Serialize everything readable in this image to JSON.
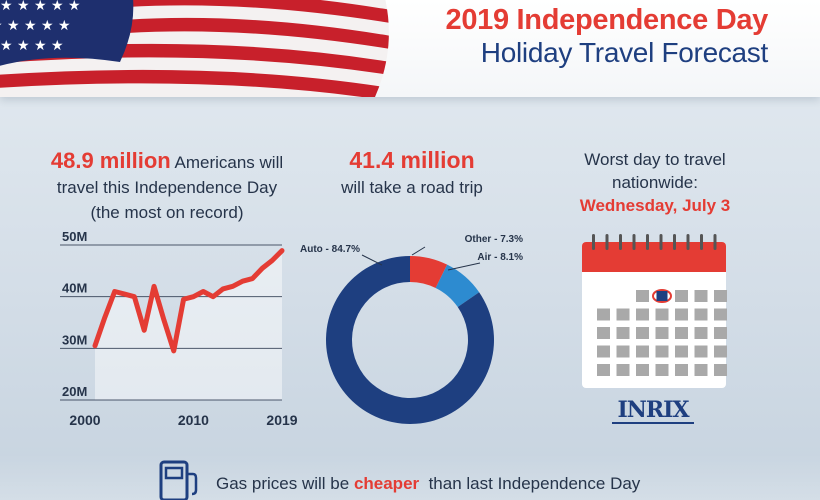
{
  "header": {
    "title_line1": "2019 Independence Day",
    "title_line2": "Holiday Travel Forecast"
  },
  "stat_travelers": {
    "highlight": "48.9 million",
    "line1_rest": " Americans will",
    "line2": "travel this Independence Day",
    "line3": "(the most on record)"
  },
  "stat_road": {
    "highlight": "41.4 million",
    "line2": "will take a road trip"
  },
  "worst_day": {
    "line1": "Worst day to travel",
    "line2": "nationwide:",
    "day": "Wednesday, July 3"
  },
  "calendar": {
    "accent": "#e43c34",
    "cell_color": "#a9a9a9",
    "marker_color": "#1e3f80"
  },
  "logo": {
    "text": "INRIX"
  },
  "gas": {
    "prefix": "Gas prices will be ",
    "emphasis": "cheaper",
    "suffix": "  than last Independence Day",
    "icon": "gas-pump-icon"
  },
  "chart_data": [
    {
      "type": "line",
      "title": "",
      "xlabel": "",
      "ylabel": "",
      "x": [
        2000,
        2001,
        2002,
        2003,
        2004,
        2005,
        2006,
        2007,
        2008,
        2009,
        2010,
        2011,
        2012,
        2013,
        2014,
        2015,
        2016,
        2017,
        2018,
        2019
      ],
      "series": [
        {
          "values": [
            30.5,
            36,
            41,
            40.5,
            40,
            33.5,
            42,
            35.5,
            29.5,
            39.5,
            40,
            41,
            40,
            41.5,
            42,
            43,
            43.5,
            45.5,
            47,
            48.9
          ]
        }
      ],
      "ylim": [
        20,
        50
      ],
      "yticks": [
        "20M",
        "30M",
        "40M",
        "50M"
      ],
      "xticks": [
        "2000",
        "2010",
        "2019"
      ],
      "xtick_values": [
        2000,
        2010,
        2019
      ],
      "grid": true,
      "line_color": "#e43c34"
    },
    {
      "type": "pie",
      "donut": true,
      "labels": [
        "Auto - 84.7%",
        "Other - 7.3%",
        "Air - 8.1%"
      ],
      "values": [
        84.7,
        7.3,
        8.1
      ],
      "colors": [
        "#1e3f80",
        "#e43c34",
        "#2d8bd0"
      ]
    }
  ]
}
